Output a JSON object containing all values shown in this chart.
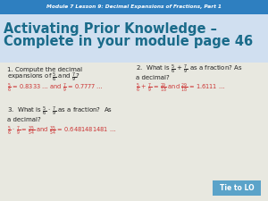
{
  "header_text": "Module 7 Lesson 9: Decimal Expansions of Fractions, Part 1",
  "header_bg": "#2e7fc0",
  "header_text_color": "#ffffff",
  "title_line1": "Activating Prior Knowledge –",
  "title_line2": "Complete in your module page 46",
  "title_color": "#1a6b8a",
  "title_bg": "#dce9f5",
  "body_bg": "#e8e8e0",
  "q1_line1": "1. Compute the decimal",
  "q1_line2": "expansions of $\\frac{5}{6}$ and $\\frac{7}{9}$?",
  "q1_ans": "$\\frac{5}{6}$ = 0.8333 … and $\\frac{7}{9}$ = 0.7777 …",
  "q2_line1": "2.  What is $\\frac{5}{6}$ + $\\frac{7}{9}$ as a fraction? As",
  "q2_line2": "a decimal?",
  "q2_ans": "$\\frac{5}{6}$ + $\\frac{7}{9}$ = $\\frac{29}{18}$ and $\\frac{29}{18}$ = 1.6111 …",
  "q3_line1": "3.  What is $\\frac{5}{6}$ $\\cdot$ $\\frac{7}{9}$ as a fraction?  As",
  "q3_line2": "a decimal?",
  "q3_ans": "$\\frac{5}{6}$ $\\cdot$ $\\frac{7}{9}$ = $\\frac{35}{54}$ and $\\frac{35}{54}$ = 0.6481481481 …",
  "answer_color": "#cc3333",
  "question_color": "#222222",
  "button_bg": "#5ba3c9",
  "button_text": "Tie to LO",
  "button_text_color": "#ffffff"
}
